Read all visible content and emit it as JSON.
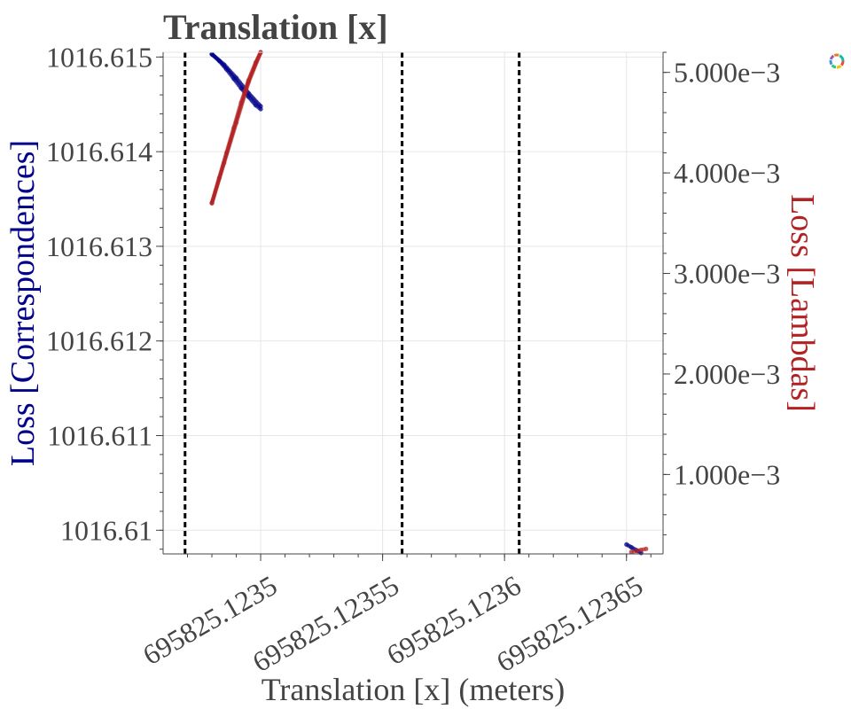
{
  "chart_data": {
    "type": "scatter",
    "title": "Translation [x]",
    "xlabel": "Translation [x] (meters)",
    "ylabel_left": "Loss [Correspondences]",
    "ylabel_right": "Loss [Lambdas]",
    "xlim": [
      695825.12346,
      695825.123665
    ],
    "ylim_left": [
      1016.60975,
      1016.61505
    ],
    "ylim_right": [
      0.00021,
      0.0052
    ],
    "x_tick_values": [
      695825.1235,
      695825.12355,
      695825.1236,
      695825.12365
    ],
    "x_tick_labels": [
      "695825.1235",
      "695825.12355",
      "695825.1236",
      "695825.12365"
    ],
    "y_left_tick_values": [
      1016.61,
      1016.611,
      1016.612,
      1016.613,
      1016.614,
      1016.615
    ],
    "y_left_tick_labels": [
      "1016.61",
      "1016.611",
      "1016.612",
      "1016.613",
      "1016.614",
      "1016.615"
    ],
    "y_right_tick_values": [
      0.001,
      0.002,
      0.003,
      0.004,
      0.005
    ],
    "y_right_tick_labels": [
      "1.000e−3",
      "2.000e−3",
      "3.000e−3",
      "4.000e−3",
      "5.000e−3"
    ],
    "vertical_lines": [
      695825.123469,
      695825.123558,
      695825.123606
    ],
    "grid": true,
    "colors": {
      "correspondences": "#00008b",
      "lambdas": "#b22222",
      "text": "#444444"
    },
    "series": [
      {
        "axis": "left",
        "color": "#00008b",
        "x": [
          695825.12348,
          695825.123485,
          695825.12349,
          695825.123495,
          695825.1235,
          695825.12348,
          695825.123483,
          695825.123486,
          695825.123489,
          695825.123492,
          695825.123495,
          695825.123498,
          695825.1235,
          695825.12365,
          695825.123652,
          695825.123654,
          695825.123656
        ],
        "y": [
          1016.61503,
          1016.61492,
          1016.61478,
          1016.61462,
          1016.61448,
          1016.61503,
          1016.61496,
          1016.61487,
          1016.61477,
          1016.61467,
          1016.61458,
          1016.61449,
          1016.61445,
          1016.60985,
          1016.60982,
          1016.60979,
          1016.60976
        ]
      },
      {
        "axis": "right",
        "color": "#b22222",
        "x": [
          695825.12348,
          695825.123485,
          695825.12349,
          695825.123495,
          695825.1235,
          695825.12348,
          695825.123483,
          695825.123486,
          695825.123489,
          695825.123492,
          695825.123495,
          695825.123498,
          695825.1235,
          695825.123652,
          695825.123654,
          695825.123656,
          695825.123658
        ],
        "y": [
          0.0037,
          0.0041,
          0.0045,
          0.0049,
          0.0052,
          0.0037,
          0.00395,
          0.0042,
          0.00445,
          0.0047,
          0.00492,
          0.0051,
          0.0052,
          0.00023,
          0.00024,
          0.00025,
          0.00026
        ]
      }
    ]
  }
}
